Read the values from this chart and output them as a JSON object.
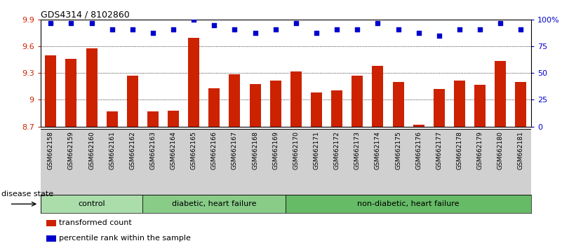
{
  "title": "GDS4314 / 8102860",
  "samples": [
    "GSM662158",
    "GSM662159",
    "GSM662160",
    "GSM662161",
    "GSM662162",
    "GSM662163",
    "GSM662164",
    "GSM662165",
    "GSM662166",
    "GSM662167",
    "GSM662168",
    "GSM662169",
    "GSM662170",
    "GSM662171",
    "GSM662172",
    "GSM662173",
    "GSM662174",
    "GSM662175",
    "GSM662176",
    "GSM662177",
    "GSM662178",
    "GSM662179",
    "GSM662180",
    "GSM662181"
  ],
  "bar_values": [
    9.5,
    9.46,
    9.58,
    8.87,
    9.27,
    8.87,
    8.88,
    9.7,
    9.13,
    9.29,
    9.18,
    9.22,
    9.32,
    9.08,
    9.11,
    9.27,
    9.38,
    9.2,
    8.72,
    9.12,
    9.22,
    9.17,
    9.44,
    9.2
  ],
  "percentile_values": [
    97,
    97,
    97,
    91,
    91,
    88,
    91,
    100,
    95,
    91,
    88,
    91,
    97,
    88,
    91,
    91,
    97,
    91,
    88,
    85,
    91,
    91,
    97,
    91
  ],
  "ylim_left": [
    8.7,
    9.9
  ],
  "ylim_right": [
    0,
    100
  ],
  "yticks_left": [
    8.7,
    9.0,
    9.3,
    9.6,
    9.9
  ],
  "yticks_right": [
    0,
    25,
    50,
    75,
    100
  ],
  "ytick_labels_left": [
    "8.7",
    "9",
    "9.3",
    "9.6",
    "9.9"
  ],
  "ytick_labels_right": [
    "0",
    "25",
    "50",
    "75",
    "100%"
  ],
  "bar_color": "#cc2200",
  "dot_color": "#0000cc",
  "groups": [
    {
      "label": "control",
      "start": 0,
      "end": 5,
      "color": "#aaddaa"
    },
    {
      "label": "diabetic, heart failure",
      "start": 5,
      "end": 12,
      "color": "#88cc88"
    },
    {
      "label": "non-diabetic, heart failure",
      "start": 12,
      "end": 24,
      "color": "#66bb66"
    }
  ],
  "disease_state_label": "disease state",
  "legend_bar_label": "transformed count",
  "legend_dot_label": "percentile rank within the sample",
  "bg_color": "#ffffff",
  "plot_bg_color": "#ffffff",
  "tick_area_color": "#d0d0d0"
}
